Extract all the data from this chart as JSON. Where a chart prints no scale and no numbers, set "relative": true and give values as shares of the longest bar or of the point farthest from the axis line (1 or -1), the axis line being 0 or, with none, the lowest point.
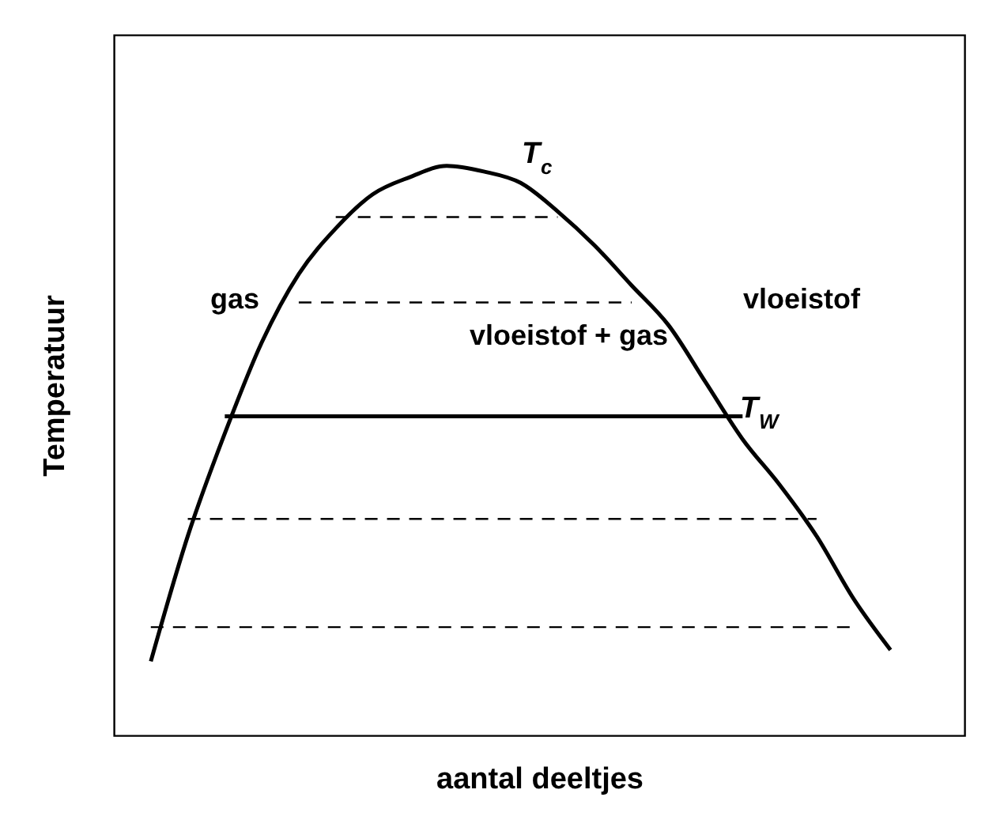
{
  "chart_data": {
    "type": "line",
    "relative": true,
    "xlabel": "aantal deeltjes",
    "ylabel": "Temperatuur",
    "categories": [
      null,
      null,
      null,
      null,
      null,
      null,
      null,
      null,
      null,
      null,
      null,
      null,
      null,
      null,
      null,
      null,
      null,
      null,
      null,
      null,
      null,
      null,
      null,
      null
    ],
    "series": [
      {
        "color": "#000000",
        "line_style": "solid",
        "values": [
          null,
          0.13,
          0.35,
          0.53,
          0.69,
          0.81,
          0.89,
          0.95,
          0.98,
          1.0,
          0.99,
          0.97,
          0.92,
          0.86,
          0.79,
          0.72,
          0.62,
          0.52,
          0.44,
          0.35,
          0.24,
          0.15,
          null,
          null
        ]
      },
      {
        "color": "#000000",
        "line_style": "dashed",
        "values": [
          null,
          null,
          null,
          null,
          null,
          null,
          0.91,
          0.91,
          0.91,
          0.91,
          0.91,
          0.91,
          0.91,
          null,
          null,
          null,
          null,
          null,
          null,
          null,
          null,
          null,
          null,
          null
        ]
      },
      {
        "color": "#000000",
        "line_style": "dashed",
        "values": [
          null,
          null,
          null,
          null,
          null,
          0.76,
          0.76,
          0.76,
          0.76,
          0.76,
          0.76,
          0.76,
          0.76,
          0.76,
          0.76,
          null,
          null,
          null,
          null,
          null,
          null,
          null,
          null,
          null
        ]
      },
      {
        "color": "#000000",
        "line_style": "solid",
        "values": [
          null,
          null,
          null,
          0.56,
          0.56,
          0.56,
          0.56,
          0.56,
          0.56,
          0.56,
          0.56,
          0.56,
          0.56,
          0.56,
          0.56,
          0.56,
          0.56,
          0.56,
          null,
          null,
          null,
          null,
          null,
          null
        ]
      },
      {
        "color": "#000000",
        "line_style": "dashed",
        "values": [
          null,
          null,
          0.38,
          0.38,
          0.38,
          0.38,
          0.38,
          0.38,
          0.38,
          0.38,
          0.38,
          0.38,
          0.38,
          0.38,
          0.38,
          0.38,
          0.38,
          0.38,
          0.38,
          0.38,
          null,
          null,
          null,
          null
        ]
      },
      {
        "color": "#000000",
        "line_style": "dashed",
        "values": [
          null,
          0.19,
          0.19,
          0.19,
          0.19,
          0.19,
          0.19,
          0.19,
          0.19,
          0.19,
          0.19,
          0.19,
          0.19,
          0.19,
          0.19,
          0.19,
          0.19,
          0.19,
          0.19,
          0.19,
          0.19,
          null,
          null,
          null
        ]
      }
    ],
    "annotations": [
      "T$_{c}$",
      "gas",
      "vloeistof",
      "vloeistof + gas",
      "T$_{W}$"
    ]
  }
}
